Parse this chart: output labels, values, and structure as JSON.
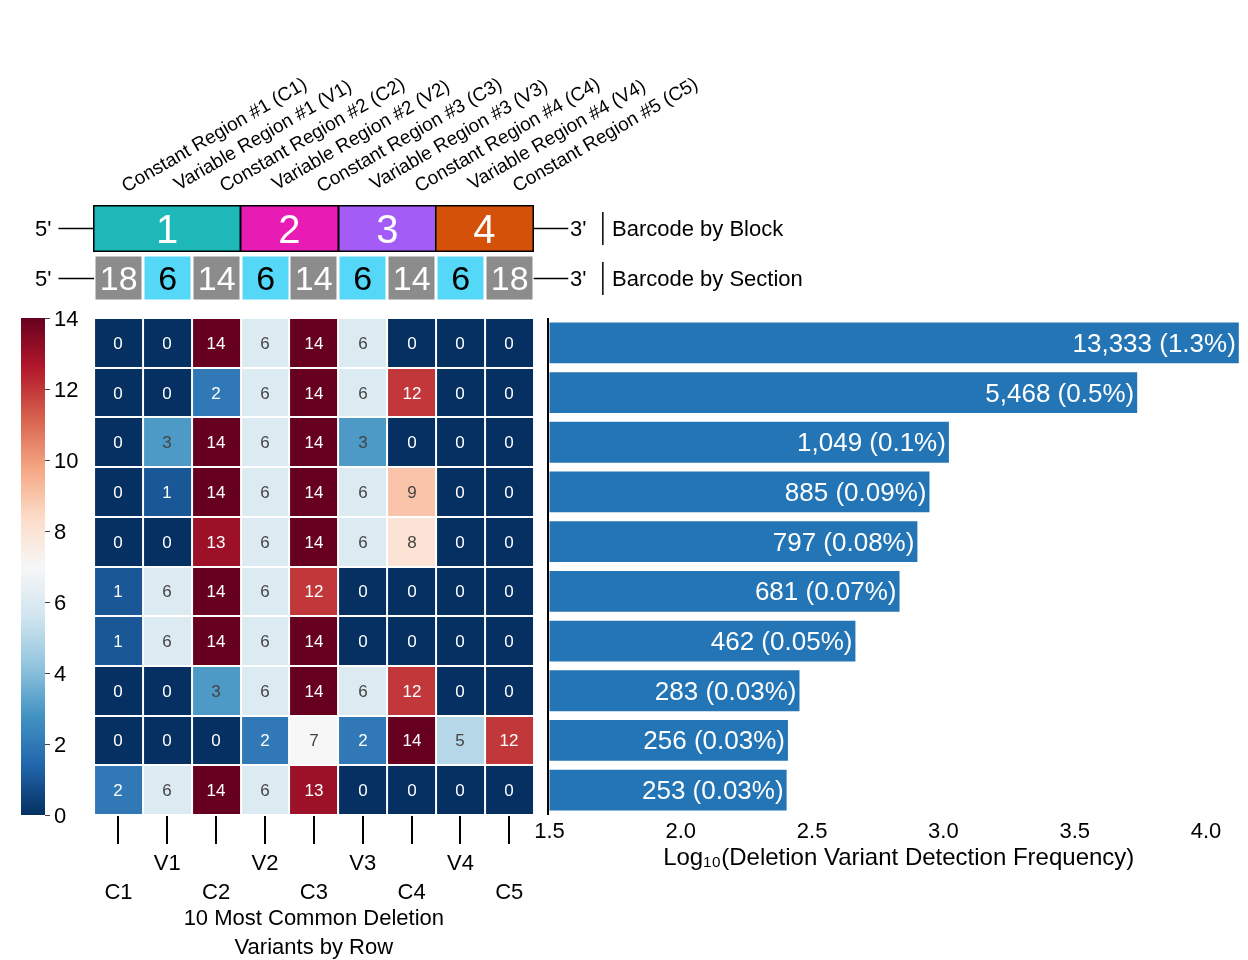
{
  "chart_data": [
    {
      "type": "heatmap",
      "xlabel": "10 Most Common Deletion Variants by Row",
      "categories": [
        "C1",
        "V1",
        "C2",
        "V2",
        "C3",
        "V3",
        "C4",
        "V4",
        "C5"
      ],
      "y_categories": [
        null,
        null,
        null,
        null,
        null,
        null,
        null,
        null,
        null,
        null
      ],
      "cells": [
        [
          0,
          0,
          14,
          6,
          14,
          6,
          0,
          0,
          0
        ],
        [
          0,
          0,
          2,
          6,
          14,
          6,
          12,
          0,
          0
        ],
        [
          0,
          3,
          14,
          6,
          14,
          3,
          0,
          0,
          0
        ],
        [
          0,
          1,
          14,
          6,
          14,
          6,
          9,
          0,
          0
        ],
        [
          0,
          0,
          13,
          6,
          14,
          6,
          8,
          0,
          0
        ],
        [
          1,
          6,
          14,
          6,
          12,
          0,
          0,
          0,
          0
        ],
        [
          1,
          6,
          14,
          6,
          14,
          0,
          0,
          0,
          0
        ],
        [
          0,
          0,
          3,
          6,
          14,
          6,
          12,
          0,
          0
        ],
        [
          0,
          0,
          0,
          2,
          7,
          2,
          14,
          5,
          12
        ],
        [
          2,
          6,
          14,
          6,
          13,
          0,
          0,
          0,
          0
        ]
      ],
      "clim": [
        0,
        14
      ],
      "cticks": [
        0,
        2,
        4,
        6,
        8,
        10,
        12,
        14
      ],
      "data_labels": true,
      "tick_labels": "x",
      "annotations": [
        "Constant Region #1 (C1)",
        "Variable Region #1 (V1)",
        "Constant Region #2 (C2)",
        "Variable Region #2 (V2)",
        "Constant Region #3 (C3)",
        "Variable Region #3 (V3)",
        "Constant Region #4 (C4)",
        "Variable Region #4 (V4)",
        "Constant Region #5 (C5)",
        "5'",
        "1",
        "2",
        "3",
        "4",
        "3'",
        "Barcode by Block",
        "5'",
        "18",
        "6",
        "14",
        "6",
        "14",
        "6",
        "14",
        "6",
        "18",
        "3'",
        "Barcode by Section"
      ]
    },
    {
      "type": "bar",
      "orientation": "horizontal",
      "xlabel": "Log₁₀(Deletion Variant Detection Frequency)",
      "categories": [
        null,
        null,
        null,
        null,
        null,
        null,
        null,
        null,
        null,
        null
      ],
      "values": [
        4.125,
        3.738,
        3.021,
        2.947,
        2.901,
        2.833,
        2.665,
        2.452,
        2.408,
        2.403
      ],
      "annotations": [
        "13,333 (1.3%)",
        "5,468 (0.5%)",
        "1,049 (0.1%)",
        "885 (0.09%)",
        "797 (0.08%)",
        "681 (0.07%)",
        "462 (0.05%)",
        "283 (0.03%)",
        "256 (0.03%)",
        "253 (0.03%)"
      ],
      "color": "#2475b5",
      "xlim": [
        1.5,
        4.16
      ],
      "xticks": [
        1.5,
        {
          "value": 2,
          "label": "2.0"
        },
        2.5,
        {
          "value": 3,
          "label": "3.0"
        },
        3.5,
        {
          "value": 4,
          "label": "4.0"
        }
      ],
      "tick_labels": "x"
    }
  ]
}
